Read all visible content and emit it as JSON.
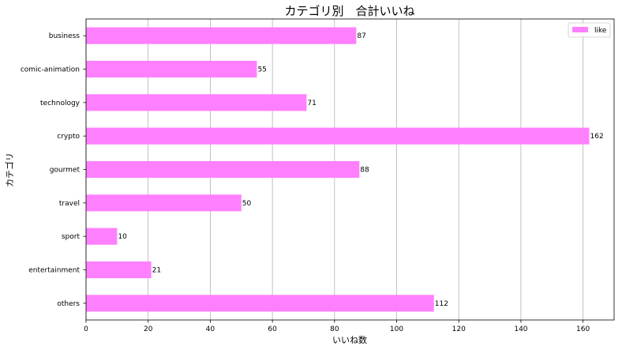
{
  "chart_data": {
    "type": "bar",
    "orientation": "horizontal",
    "title": "カテゴリ別　合計いいね",
    "xlabel": "いいね数",
    "ylabel": "カテゴリ",
    "categories": [
      "business",
      "comic-animation",
      "technology",
      "crypto",
      "gourmet",
      "travel",
      "sport",
      "entertainment",
      "others"
    ],
    "series": [
      {
        "name": "like",
        "values": [
          87,
          55,
          71,
          162,
          88,
          50,
          10,
          21,
          112
        ],
        "color": "#ff80ff"
      }
    ],
    "xlim": [
      0,
      170
    ],
    "xticks": [
      0,
      20,
      40,
      60,
      80,
      100,
      120,
      140,
      160
    ],
    "grid": "x",
    "legend_position": "top-right",
    "data_labels": true
  }
}
